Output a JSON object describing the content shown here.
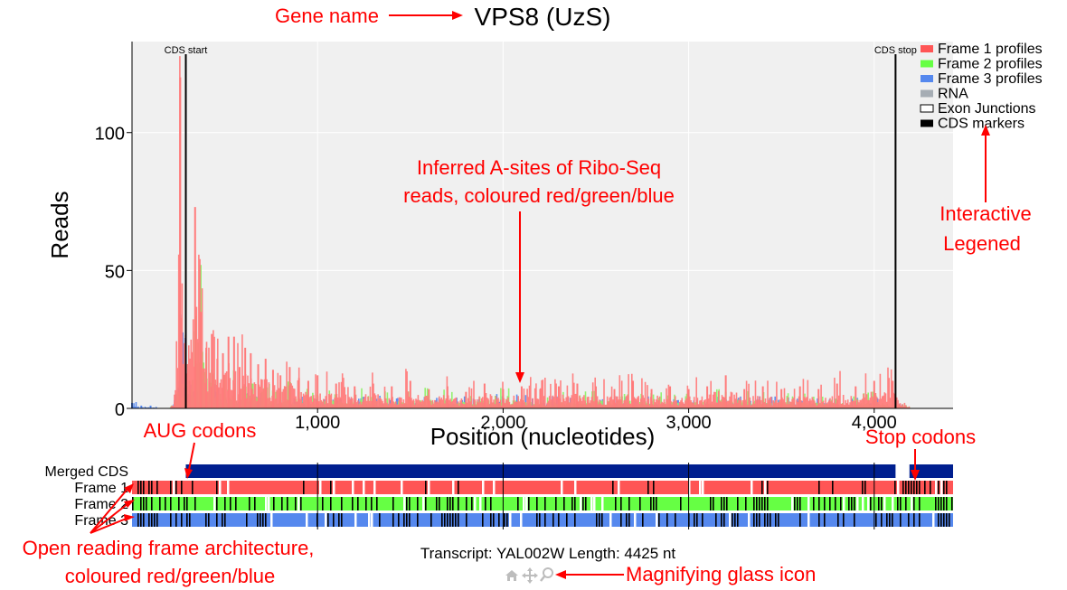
{
  "annotations": {
    "gene_name": "Gene name",
    "a_sites": [
      "Inferred A-sites of Ribo-Seq",
      "reads, coloured red/green/blue"
    ],
    "legend": [
      "Interactive",
      "Legened"
    ],
    "aug": "AUG codons",
    "stop": "Stop codons",
    "orf": [
      "Open reading frame architecture,",
      "coloured red/green/blue"
    ],
    "magnifier": "Magnifying glass icon"
  },
  "colors": {
    "frame1": "#ff5555",
    "frame1_line": "#ff7b7b",
    "frame2": "#66ff44",
    "frame2_line": "#8ff06a",
    "frame3": "#5588ee",
    "rna": "#a6adb4",
    "cds": "#000000",
    "merged_cds": "#001f8f",
    "annotation": "#ff0000",
    "plot_bg": "#f0f0f0"
  },
  "toolbar": {
    "icons": [
      "home-icon",
      "pan-icon",
      "magnifier-icon"
    ]
  },
  "chart_data": {
    "type": "line",
    "title": "VPS8 (UzS)",
    "xlabel": "Position (nucleotides)",
    "ylabel": "Reads",
    "xlim": [
      0,
      4425
    ],
    "ylim": [
      0,
      133
    ],
    "x_ticks": [
      1000,
      2000,
      3000,
      4000
    ],
    "x_tick_labels": [
      "1,000",
      "2,000",
      "3,000",
      "4,000"
    ],
    "y_ticks": [
      0,
      50,
      100
    ],
    "y_tick_labels": [
      "0",
      "50",
      "100"
    ],
    "grid": true,
    "legend_position": "top-right",
    "legend": [
      "Frame 1 profiles",
      "Frame 2 profiles",
      "Frame 3 profiles",
      "RNA",
      "Exon Junctions",
      "CDS markers"
    ],
    "cds_markers": [
      {
        "label": "CDS start",
        "x": 290
      },
      {
        "label": "CDS stop",
        "x": 4115
      }
    ],
    "series": [
      {
        "name": "Frame 1 profiles",
        "x": [
          200,
          230,
          260,
          290,
          310,
          340,
          370,
          400,
          430,
          460,
          490,
          520,
          550,
          580,
          610,
          640,
          680,
          720,
          760,
          800,
          850,
          900,
          950,
          1000,
          1100,
          1200,
          1300,
          1400,
          1500,
          1600,
          1700,
          1800,
          1900,
          2000,
          2100,
          2200,
          2300,
          2400,
          2500,
          2600,
          2700,
          2800,
          2900,
          3000,
          3100,
          3200,
          3300,
          3400,
          3500,
          3600,
          3700,
          3800,
          3900,
          4000,
          4100,
          4200,
          4425
        ],
        "values": [
          0,
          5,
          120,
          43,
          10,
          73,
          35,
          22,
          27,
          18,
          20,
          26,
          26,
          15,
          22,
          20,
          16,
          18,
          14,
          12,
          15,
          11,
          10,
          12,
          9,
          8,
          9,
          8,
          10,
          7,
          8,
          6,
          9,
          7,
          8,
          7,
          8,
          9,
          8,
          7,
          10,
          7,
          8,
          7,
          8,
          12,
          7,
          8,
          7,
          8,
          7,
          9,
          8,
          10,
          10,
          0,
          0
        ]
      },
      {
        "name": "Frame 2 profiles",
        "x": [
          200,
          230,
          260,
          290,
          310,
          340,
          370,
          400,
          430,
          460,
          500,
          550,
          600,
          650,
          700,
          800,
          900,
          1000,
          1200,
          1400,
          1600,
          1800,
          2000,
          2200,
          2400,
          2600,
          2800,
          3000,
          3200,
          3400,
          3600,
          3800,
          4000,
          4100,
          4200,
          4425
        ],
        "values": [
          0,
          2,
          18,
          8,
          6,
          28,
          52,
          20,
          14,
          10,
          12,
          9,
          8,
          9,
          6,
          7,
          6,
          5,
          5,
          4,
          5,
          4,
          5,
          4,
          4,
          5,
          4,
          4,
          6,
          4,
          4,
          3,
          4,
          3,
          0,
          0
        ]
      },
      {
        "name": "Frame 3 profiles",
        "x": [
          0,
          50,
          100,
          150,
          200,
          230,
          260,
          290,
          310,
          340,
          370,
          400,
          450,
          500,
          600,
          700,
          800,
          900,
          1000,
          1200,
          1400,
          1600,
          1800,
          2000,
          2200,
          2400,
          2600,
          2800,
          3000,
          3200,
          3400,
          3600,
          3800,
          4000,
          4100,
          4200,
          4425
        ],
        "values": [
          2,
          1,
          1,
          0,
          0,
          3,
          34,
          14,
          8,
          12,
          10,
          7,
          6,
          5,
          5,
          4,
          3,
          4,
          3,
          3,
          3,
          3,
          3,
          4,
          3,
          3,
          3,
          3,
          3,
          3,
          3,
          3,
          3,
          3,
          2,
          0,
          0
        ]
      }
    ],
    "tracks": {
      "labels": [
        "Merged CDS",
        "Frame 1",
        "Frame 2",
        "Frame 3"
      ],
      "merged_cds_segments": [
        [
          290,
          4115
        ],
        [
          4190,
          4425
        ]
      ]
    },
    "transcript_info": "Transcript: YAL002W Length: 4425 nt"
  }
}
